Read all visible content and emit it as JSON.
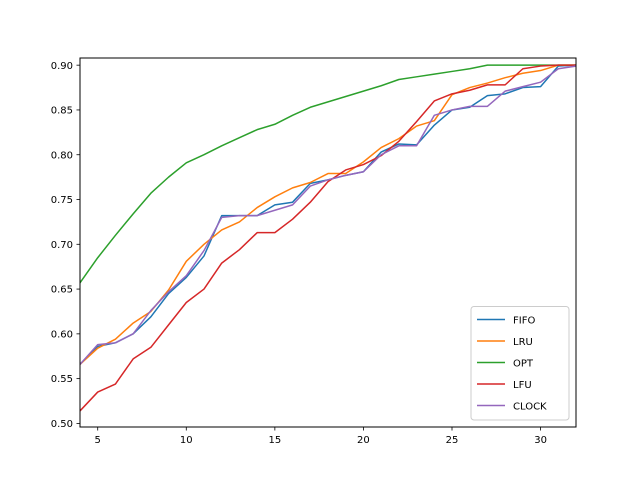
{
  "chart_data": {
    "type": "line",
    "title": "",
    "xlabel": "",
    "ylabel": "",
    "xlim": [
      4,
      32
    ],
    "ylim": [
      0.496,
      0.908
    ],
    "x_ticks": [
      5,
      10,
      15,
      20,
      25,
      30
    ],
    "y_ticks": [
      0.5,
      0.55,
      0.6,
      0.65,
      0.7,
      0.75,
      0.8,
      0.85,
      0.9
    ],
    "grid": false,
    "legend_position": "lower-right",
    "x": [
      4,
      5,
      6,
      7,
      8,
      9,
      10,
      11,
      12,
      13,
      14,
      15,
      16,
      17,
      18,
      19,
      20,
      21,
      22,
      23,
      24,
      25,
      26,
      27,
      28,
      29,
      30,
      31,
      32
    ],
    "series": [
      {
        "name": "FIFO",
        "color": "#1f77b4",
        "values": [
          0.566,
          0.586,
          0.59,
          0.6,
          0.619,
          0.645,
          0.663,
          0.687,
          0.732,
          0.732,
          0.732,
          0.744,
          0.747,
          0.768,
          0.772,
          0.777,
          0.781,
          0.803,
          0.812,
          0.811,
          0.833,
          0.85,
          0.853,
          0.866,
          0.868,
          0.875,
          0.876,
          0.899,
          0.9
        ]
      },
      {
        "name": "LRU",
        "color": "#ff7f0e",
        "values": [
          0.566,
          0.584,
          0.594,
          0.612,
          0.625,
          0.649,
          0.681,
          0.7,
          0.716,
          0.725,
          0.741,
          0.753,
          0.763,
          0.769,
          0.779,
          0.779,
          0.792,
          0.808,
          0.818,
          0.832,
          0.838,
          0.867,
          0.875,
          0.88,
          0.886,
          0.891,
          0.894,
          0.9,
          0.9
        ]
      },
      {
        "name": "OPT",
        "color": "#2ca02c",
        "values": [
          0.657,
          0.685,
          0.71,
          0.734,
          0.757,
          0.775,
          0.791,
          0.8,
          0.81,
          0.819,
          0.828,
          0.834,
          0.844,
          0.853,
          0.859,
          0.865,
          0.871,
          0.877,
          0.884,
          0.887,
          0.89,
          0.893,
          0.896,
          0.9,
          0.9,
          0.9,
          0.9,
          0.9,
          0.9
        ]
      },
      {
        "name": "LFU",
        "color": "#d62728",
        "values": [
          0.514,
          0.535,
          0.544,
          0.572,
          0.585,
          0.61,
          0.635,
          0.65,
          0.679,
          0.694,
          0.713,
          0.713,
          0.728,
          0.747,
          0.77,
          0.783,
          0.789,
          0.799,
          0.815,
          0.837,
          0.86,
          0.868,
          0.872,
          0.878,
          0.878,
          0.896,
          0.899,
          0.9,
          0.9
        ]
      },
      {
        "name": "CLOCK",
        "color": "#9467bd",
        "values": [
          0.566,
          0.588,
          0.59,
          0.6,
          0.626,
          0.647,
          0.665,
          0.693,
          0.73,
          0.732,
          0.732,
          0.738,
          0.744,
          0.765,
          0.772,
          0.777,
          0.781,
          0.8,
          0.81,
          0.81,
          0.844,
          0.85,
          0.854,
          0.854,
          0.871,
          0.876,
          0.881,
          0.896,
          0.899
        ]
      }
    ]
  }
}
